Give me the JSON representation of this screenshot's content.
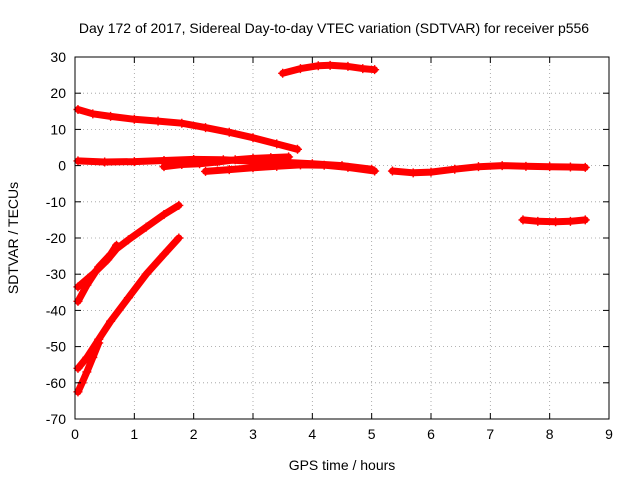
{
  "chart_data": {
    "type": "scatter",
    "title": "Day 172 of 2017, Sidereal Day-to-day VTEC variation (SDTVAR) for receiver p556",
    "xlabel": "GPS time / hours",
    "ylabel": "SDTVAR / TECUs",
    "xlim": [
      0,
      9
    ],
    "ylim": [
      -70,
      30
    ],
    "xticks": [
      0,
      1,
      2,
      3,
      4,
      5,
      6,
      7,
      8,
      9
    ],
    "yticks": [
      -70,
      -60,
      -50,
      -40,
      -30,
      -20,
      -10,
      0,
      10,
      20,
      30
    ],
    "grid": true,
    "marker_color": "#ff0000",
    "series": [
      {
        "x": [
          0.05,
          0.3,
          0.6,
          1.0,
          1.4,
          1.8,
          2.2,
          2.6,
          3.0,
          3.4,
          3.75
        ],
        "y": [
          15.5,
          14.3,
          13.6,
          12.8,
          12.3,
          11.7,
          10.5,
          9.2,
          7.7,
          6.0,
          4.5
        ]
      },
      {
        "x": [
          0.05,
          0.5,
          1.0,
          1.5,
          2.0,
          2.5,
          3.0,
          3.5,
          4.0,
          4.5,
          5.0
        ],
        "y": [
          1.3,
          1.0,
          1.1,
          1.4,
          1.7,
          1.6,
          1.2,
          0.9,
          0.5,
          0.0,
          -1.0
        ]
      },
      {
        "x": [
          1.5,
          1.8,
          2.1,
          2.4,
          2.7,
          3.0,
          3.3,
          3.6
        ],
        "y": [
          -0.3,
          0.3,
          0.5,
          1.0,
          1.6,
          2.0,
          2.2,
          2.4
        ]
      },
      {
        "x": [
          2.2,
          2.6,
          3.0,
          3.4,
          3.8,
          4.2,
          4.6,
          5.05
        ],
        "y": [
          -1.6,
          -1.1,
          -0.6,
          -0.2,
          0.2,
          0.1,
          -0.5,
          -1.5
        ]
      },
      {
        "x": [
          5.35,
          5.7,
          6.0,
          6.4,
          6.8,
          7.2,
          7.6,
          8.0,
          8.35,
          8.6
        ],
        "y": [
          -1.5,
          -2.0,
          -1.8,
          -1.0,
          -0.3,
          0.0,
          -0.2,
          -0.3,
          -0.4,
          -0.5
        ]
      },
      {
        "x": [
          3.5,
          3.8,
          4.1,
          4.3,
          4.6,
          4.85,
          5.05
        ],
        "y": [
          25.5,
          26.8,
          27.6,
          27.7,
          27.4,
          26.8,
          26.5
        ]
      },
      {
        "x": [
          7.55,
          7.8,
          8.1,
          8.35,
          8.6
        ],
        "y": [
          -15.0,
          -15.4,
          -15.5,
          -15.4,
          -15.0
        ]
      },
      {
        "x": [
          0.05,
          0.3,
          0.55,
          0.7,
          0.9,
          1.2,
          1.5,
          1.75
        ],
        "y": [
          -33.5,
          -30.0,
          -26.0,
          -23.0,
          -20.5,
          -17.0,
          -13.5,
          -11.0
        ]
      },
      {
        "x": [
          0.05,
          0.2,
          0.4,
          0.6,
          0.7
        ],
        "y": [
          -37.5,
          -33.0,
          -28.0,
          -24.5,
          -22.0
        ]
      },
      {
        "x": [
          0.05,
          0.2,
          0.4,
          0.6,
          0.9,
          1.2,
          1.5,
          1.75
        ],
        "y": [
          -56.0,
          -53.0,
          -48.0,
          -43.0,
          -36.5,
          -30.0,
          -24.5,
          -20.0
        ]
      },
      {
        "x": [
          0.05,
          0.12,
          0.2,
          0.3,
          0.4
        ],
        "y": [
          -62.5,
          -60.0,
          -57.0,
          -53.0,
          -49.0
        ]
      }
    ]
  }
}
